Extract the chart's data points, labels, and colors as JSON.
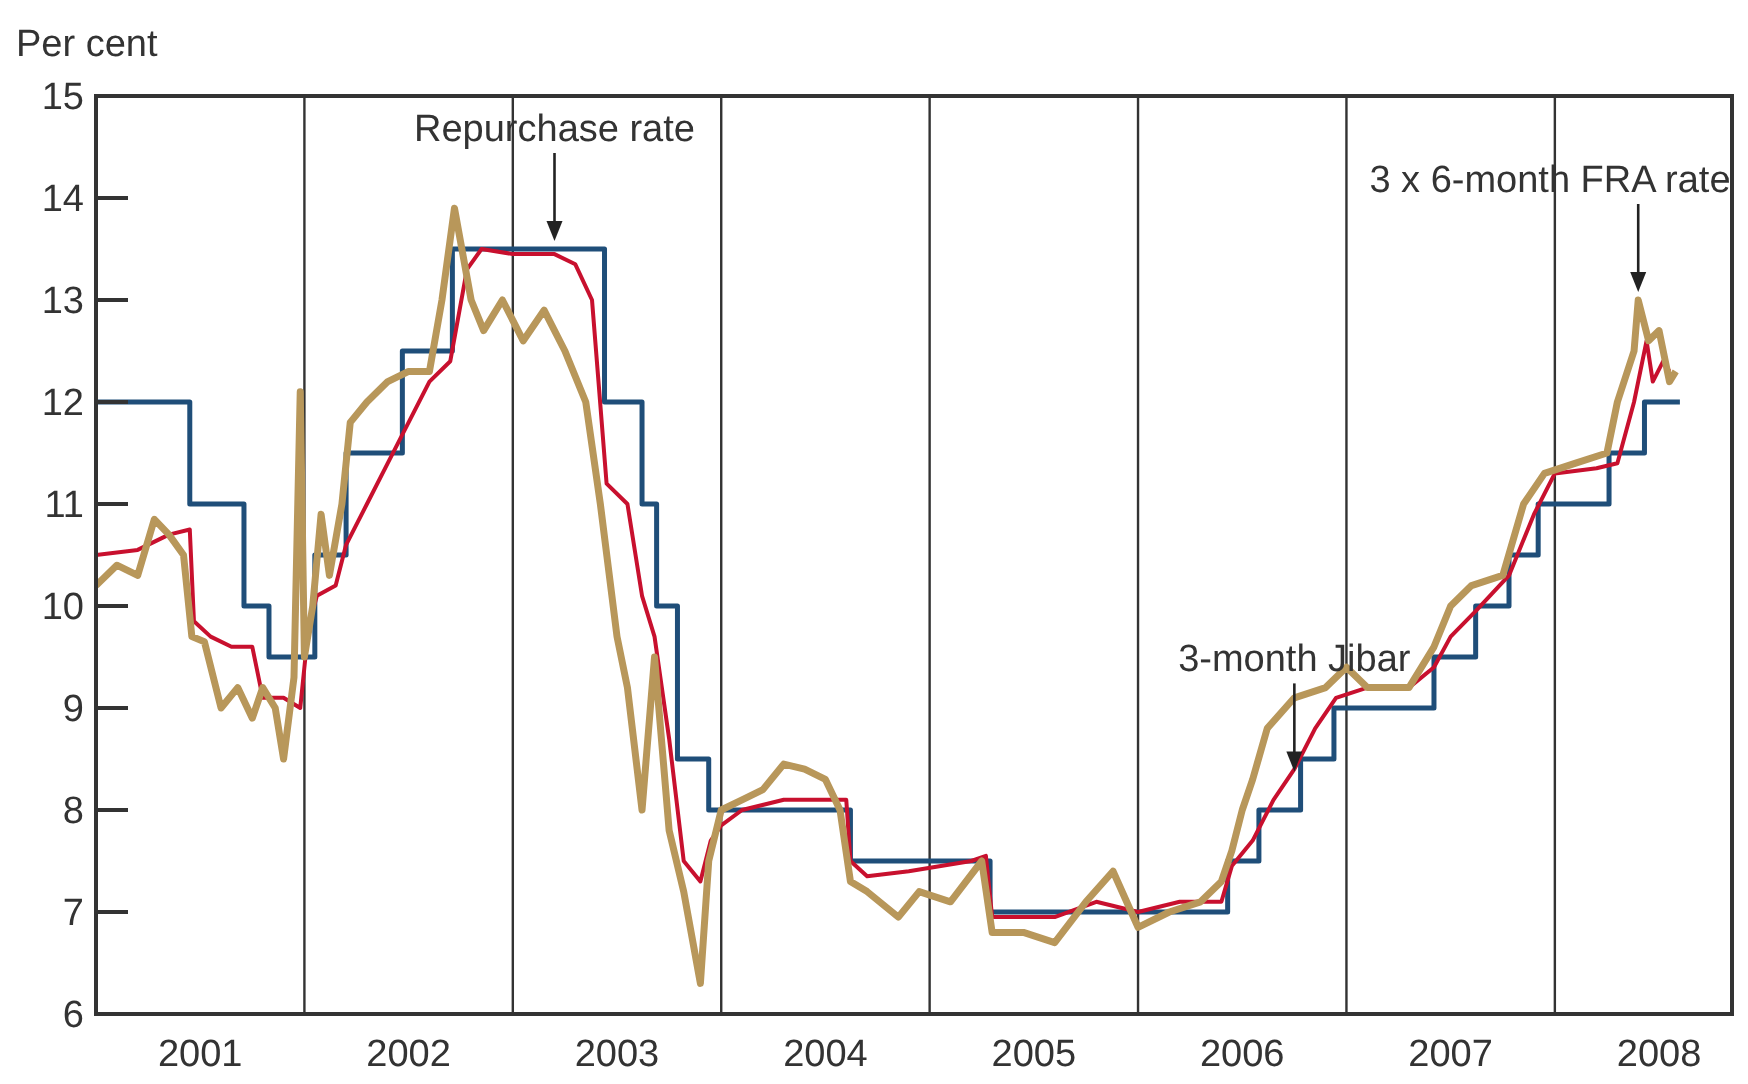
{
  "chart_data": {
    "type": "line",
    "ylabel": "Per cent",
    "xlim": [
      2001,
      2008.85
    ],
    "ylim": [
      6,
      15
    ],
    "xticks": [
      {
        "value": 2001.5,
        "label": "2001"
      },
      {
        "value": 2002.5,
        "label": "2002"
      },
      {
        "value": 2003.5,
        "label": "2003"
      },
      {
        "value": 2004.5,
        "label": "2004"
      },
      {
        "value": 2005.5,
        "label": "2005"
      },
      {
        "value": 2006.5,
        "label": "2006"
      },
      {
        "value": 2007.5,
        "label": "2007"
      },
      {
        "value": 2008.5,
        "label": "2008"
      }
    ],
    "yticks": [
      6,
      7,
      8,
      9,
      10,
      11,
      12,
      13,
      14,
      15
    ],
    "grid": false,
    "ref_lines": [
      {
        "axis": "x",
        "value": 2002,
        "color": "#333333"
      },
      {
        "axis": "x",
        "value": 2003,
        "color": "#333333"
      },
      {
        "axis": "x",
        "value": 2004,
        "color": "#333333"
      },
      {
        "axis": "x",
        "value": 2005,
        "color": "#333333"
      },
      {
        "axis": "x",
        "value": 2006,
        "color": "#333333"
      },
      {
        "axis": "x",
        "value": 2007,
        "color": "#333333"
      },
      {
        "axis": "x",
        "value": 2008,
        "color": "#333333"
      }
    ],
    "series": [
      {
        "type": "step",
        "color": "#1f4e79",
        "x": [
          2001,
          2001.45,
          2001.71,
          2001.83,
          2002.05,
          2002.2,
          2002.47,
          2002.71,
          2003.44,
          2003.62,
          2003.69,
          2003.79,
          2003.94,
          2004.62,
          2005.29,
          2006.43,
          2006.58,
          2006.78,
          2006.94,
          2007.42,
          2007.62,
          2007.78,
          2007.92,
          2008.26,
          2008.43,
          2008.6
        ],
        "values": [
          12,
          11,
          10,
          9.5,
          10.5,
          11.5,
          12.5,
          13.5,
          12,
          11,
          10,
          8.5,
          8,
          7.5,
          7,
          7.5,
          8,
          8.5,
          9,
          9.5,
          10,
          10.5,
          11,
          11.5,
          12,
          12
        ]
      },
      {
        "color": "#c8102e",
        "x": [
          2001,
          2001.2,
          2001.35,
          2001.45,
          2001.47,
          2001.55,
          2001.65,
          2001.75,
          2001.8,
          2001.9,
          2001.98,
          2002.02,
          2002.06,
          2002.15,
          2002.2,
          2002.3,
          2002.4,
          2002.5,
          2002.6,
          2002.7,
          2002.78,
          2002.85,
          2003,
          2003.2,
          2003.3,
          2003.38,
          2003.45,
          2003.55,
          2003.62,
          2003.68,
          2003.75,
          2003.82,
          2003.9,
          2003.95,
          2004,
          2004.1,
          2004.3,
          2004.6,
          2004.62,
          2004.7,
          2004.9,
          2005.2,
          2005.27,
          2005.3,
          2005.6,
          2005.8,
          2006,
          2006.2,
          2006.4,
          2006.45,
          2006.55,
          2006.65,
          2006.75,
          2006.85,
          2006.95,
          2007.1,
          2007.3,
          2007.42,
          2007.5,
          2007.62,
          2007.78,
          2007.9,
          2008,
          2008.2,
          2008.3,
          2008.38,
          2008.44,
          2008.47,
          2008.52,
          2008.55
        ],
        "values": [
          10.5,
          10.55,
          10.7,
          10.75,
          9.85,
          9.7,
          9.6,
          9.6,
          9.1,
          9.1,
          9,
          9.8,
          10.1,
          10.2,
          10.6,
          11,
          11.4,
          11.8,
          12.2,
          12.4,
          13.3,
          13.5,
          13.45,
          13.45,
          13.35,
          13,
          11.2,
          11,
          10.1,
          9.7,
          8.7,
          7.5,
          7.3,
          7.7,
          7.85,
          8,
          8.1,
          8.1,
          7.5,
          7.35,
          7.4,
          7.5,
          7.55,
          6.95,
          6.95,
          7.1,
          7,
          7.1,
          7.1,
          7.45,
          7.7,
          8.1,
          8.4,
          8.8,
          9.1,
          9.2,
          9.2,
          9.4,
          9.7,
          9.95,
          10.3,
          10.9,
          11.3,
          11.35,
          11.4,
          12,
          12.6,
          12.2,
          12.4,
          12.3
        ]
      },
      {
        "color": "#b8975a",
        "x": [
          2001,
          2001.1,
          2001.2,
          2001.28,
          2001.35,
          2001.42,
          2001.46,
          2001.52,
          2001.6,
          2001.68,
          2001.75,
          2001.8,
          2001.86,
          2001.9,
          2001.95,
          2001.98,
          2002,
          2002.04,
          2002.08,
          2002.12,
          2002.18,
          2002.22,
          2002.3,
          2002.4,
          2002.5,
          2002.6,
          2002.66,
          2002.72,
          2002.8,
          2002.86,
          2002.95,
          2003.05,
          2003.15,
          2003.25,
          2003.35,
          2003.42,
          2003.5,
          2003.55,
          2003.62,
          2003.68,
          2003.75,
          2003.82,
          2003.9,
          2003.94,
          2004,
          2004.1,
          2004.2,
          2004.3,
          2004.4,
          2004.5,
          2004.57,
          2004.62,
          2004.7,
          2004.85,
          2004.95,
          2005.1,
          2005.25,
          2005.3,
          2005.45,
          2005.6,
          2005.75,
          2005.88,
          2006,
          2006.15,
          2006.3,
          2006.4,
          2006.45,
          2006.5,
          2006.55,
          2006.62,
          2006.75,
          2006.9,
          2007,
          2007.1,
          2007.3,
          2007.42,
          2007.5,
          2007.6,
          2007.75,
          2007.85,
          2007.95,
          2008.1,
          2008.25,
          2008.3,
          2008.38,
          2008.4,
          2008.45,
          2008.5,
          2008.55,
          2008.58
        ],
        "values": [
          10.2,
          10.4,
          10.3,
          10.85,
          10.7,
          10.5,
          9.7,
          9.65,
          9,
          9.2,
          8.9,
          9.2,
          9,
          8.5,
          9.3,
          12.1,
          9.5,
          10,
          10.9,
          10.3,
          11,
          11.8,
          12,
          12.2,
          12.3,
          12.3,
          13,
          13.9,
          13,
          12.7,
          13,
          12.6,
          12.9,
          12.5,
          12,
          11,
          9.7,
          9.2,
          8,
          9.5,
          7.8,
          7.2,
          6.3,
          7.5,
          8,
          8.1,
          8.2,
          8.45,
          8.4,
          8.3,
          8,
          7.3,
          7.2,
          6.95,
          7.2,
          7.1,
          7.5,
          6.8,
          6.8,
          6.7,
          7.1,
          7.4,
          6.85,
          7,
          7.1,
          7.3,
          7.6,
          8,
          8.3,
          8.8,
          9.1,
          9.2,
          9.4,
          9.2,
          9.2,
          9.6,
          10,
          10.2,
          10.3,
          11,
          11.3,
          11.4,
          11.5,
          12,
          12.5,
          13,
          12.6,
          12.7,
          12.2,
          12.3
        ]
      }
    ],
    "annotations": [
      {
        "text": "Repurchase rate",
        "x": 2003.2,
        "y": 13.5
      },
      {
        "text": "3-month Jibar",
        "x": 2006.75,
        "y": 8.3
      },
      {
        "text": "3 x 6-month FRA rate",
        "x": 2008.4,
        "y": 13
      }
    ]
  }
}
